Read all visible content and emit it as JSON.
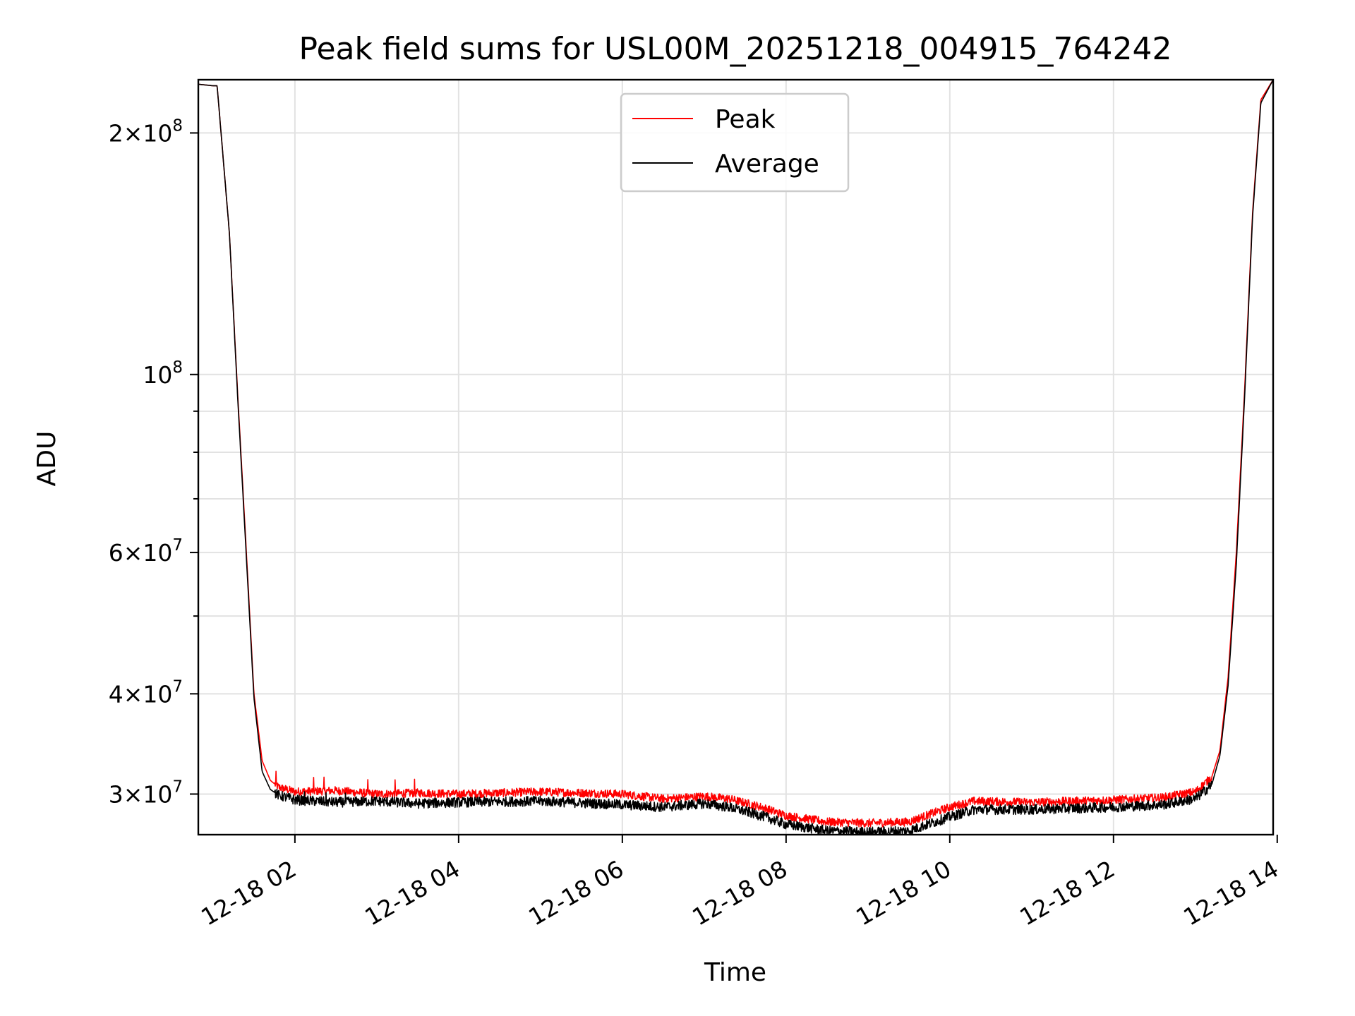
{
  "chart_data": {
    "type": "line",
    "title": "Peak field sums for USL00M_20251218_004915_764242",
    "xlabel": "Time",
    "ylabel": "ADU",
    "yscale": "log",
    "xlim_hours": [
      0.82,
      13.95
    ],
    "ylim": [
      26700000,
      233000000
    ],
    "grid": true,
    "legend_position": "upper center",
    "x_ticks": [
      {
        "hour": 2,
        "label": "12-18 02"
      },
      {
        "hour": 4,
        "label": "12-18 04"
      },
      {
        "hour": 6,
        "label": "12-18 06"
      },
      {
        "hour": 8,
        "label": "12-18 08"
      },
      {
        "hour": 10,
        "label": "12-18 10"
      },
      {
        "hour": 12,
        "label": "12-18 12"
      },
      {
        "hour": 14,
        "label": "12-18 14"
      }
    ],
    "y_major_ticks": [
      {
        "value": 30000000,
        "mantissa": "3",
        "exponent": "7"
      },
      {
        "value": 40000000,
        "mantissa": "4",
        "exponent": "7"
      },
      {
        "value": 60000000,
        "mantissa": "6",
        "exponent": "7"
      },
      {
        "value": 100000000,
        "mantissa": "",
        "exponent": "8"
      },
      {
        "value": 200000000,
        "mantissa": "2",
        "exponent": "8"
      }
    ],
    "y_minor_grid": [
      50000000,
      70000000,
      80000000,
      90000000
    ],
    "series": [
      {
        "name": "Peak",
        "color": "#ff0000",
        "noise": 0.5,
        "x": [
          0.82,
          1.0,
          1.05,
          1.2,
          1.3,
          1.4,
          1.5,
          1.6,
          1.7,
          1.8,
          2.0,
          2.5,
          3.0,
          3.5,
          4.0,
          5.0,
          6.0,
          6.5,
          7.0,
          7.3,
          7.7,
          8.0,
          8.5,
          9.0,
          9.5,
          10.0,
          10.3,
          11.0,
          12.0,
          12.6,
          13.0,
          13.2,
          13.3,
          13.4,
          13.5,
          13.6,
          13.7,
          13.8,
          13.95
        ],
        "y": [
          230000000,
          229000000,
          229000000,
          150000000,
          95000000,
          62000000,
          40000000,
          33000000,
          31200000,
          30600000,
          30200000,
          30300000,
          30000000,
          30100000,
          30000000,
          30200000,
          30000000,
          29600000,
          29800000,
          29600000,
          28900000,
          28200000,
          27700000,
          27600000,
          27700000,
          28900000,
          29400000,
          29300000,
          29500000,
          29700000,
          30200000,
          31500000,
          34000000,
          42000000,
          60000000,
          95000000,
          160000000,
          220000000,
          233000000
        ]
      },
      {
        "name": "Average",
        "color": "#000000",
        "noise": 0.6,
        "x": [
          0.82,
          1.0,
          1.05,
          1.2,
          1.3,
          1.4,
          1.5,
          1.6,
          1.7,
          1.8,
          2.0,
          2.5,
          3.0,
          3.5,
          4.0,
          5.0,
          6.0,
          6.5,
          7.0,
          7.3,
          7.7,
          8.0,
          8.5,
          9.0,
          9.5,
          10.0,
          10.3,
          11.0,
          12.0,
          12.6,
          13.0,
          13.2,
          13.3,
          13.4,
          13.5,
          13.6,
          13.7,
          13.8,
          13.95
        ],
        "y": [
          230000000,
          229000000,
          229000000,
          150000000,
          94000000,
          61000000,
          39500000,
          32000000,
          30400000,
          29900000,
          29500000,
          29300000,
          29400000,
          29200000,
          29300000,
          29400000,
          29100000,
          28900000,
          29200000,
          28900000,
          28200000,
          27500000,
          27000000,
          26900000,
          27000000,
          28100000,
          28700000,
          28700000,
          28900000,
          29100000,
          29600000,
          30800000,
          33500000,
          41000000,
          58000000,
          93000000,
          158000000,
          218000000,
          233000000
        ]
      }
    ]
  }
}
